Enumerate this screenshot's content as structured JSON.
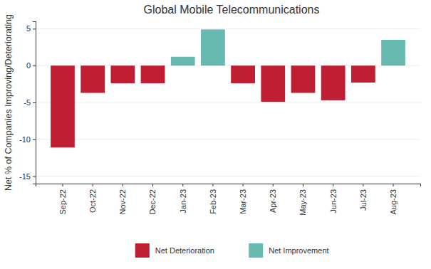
{
  "chart_data": {
    "type": "bar",
    "title": "Global Mobile Telecommunications",
    "y_label": "Net % of Companies Improving/Deteriorating",
    "categories": [
      "Sep-22",
      "Oct-22",
      "Nov-22",
      "Dec-22",
      "Jan-23",
      "Feb-23",
      "Mar-23",
      "Apr-23",
      "May-23",
      "Jun-23",
      "Jul-23",
      "Aug-23"
    ],
    "series": [
      {
        "name": "Net Deterioration",
        "color": "#c01f33",
        "values": [
          -11.1,
          -3.7,
          -2.4,
          -2.4,
          null,
          null,
          -2.4,
          -4.9,
          -3.7,
          -4.7,
          -2.3,
          null
        ]
      },
      {
        "name": "Net Improvement",
        "color": "#66bab0",
        "values": [
          null,
          null,
          null,
          null,
          1.2,
          4.9,
          null,
          null,
          null,
          null,
          null,
          3.5
        ]
      }
    ],
    "ylim": [
      -16,
      6
    ],
    "yticks": [
      -15,
      -10,
      -5,
      0,
      5
    ],
    "grid": true,
    "legend": "bottom"
  }
}
